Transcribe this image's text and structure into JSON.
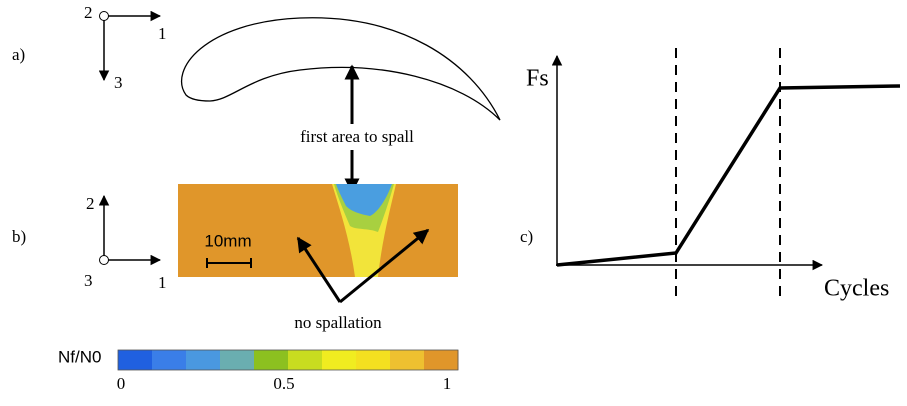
{
  "panel_a": {
    "label": "a)",
    "axes": {
      "origin": "2",
      "right": "1",
      "down": "3"
    },
    "annotation": "first area to spall"
  },
  "panel_b": {
    "label": "b)",
    "axes": {
      "up": "2",
      "origin": "3",
      "right": "1"
    },
    "scale_bar": "10mm",
    "annotation": "no spallation"
  },
  "colorbar": {
    "label": "Nf/N0",
    "range": [
      0,
      1
    ],
    "ticks": [
      0,
      0.5,
      1
    ],
    "colors": [
      "#2060e0",
      "#3a7ee8",
      "#4a98e0",
      "#6aaeb0",
      "#8cc020",
      "#c8dc20",
      "#f0ec20",
      "#f4e020",
      "#eec030",
      "#e0962a"
    ]
  },
  "panel_c": {
    "label": "c)",
    "y_label": "Fs",
    "x_label": "Cycles"
  }
}
